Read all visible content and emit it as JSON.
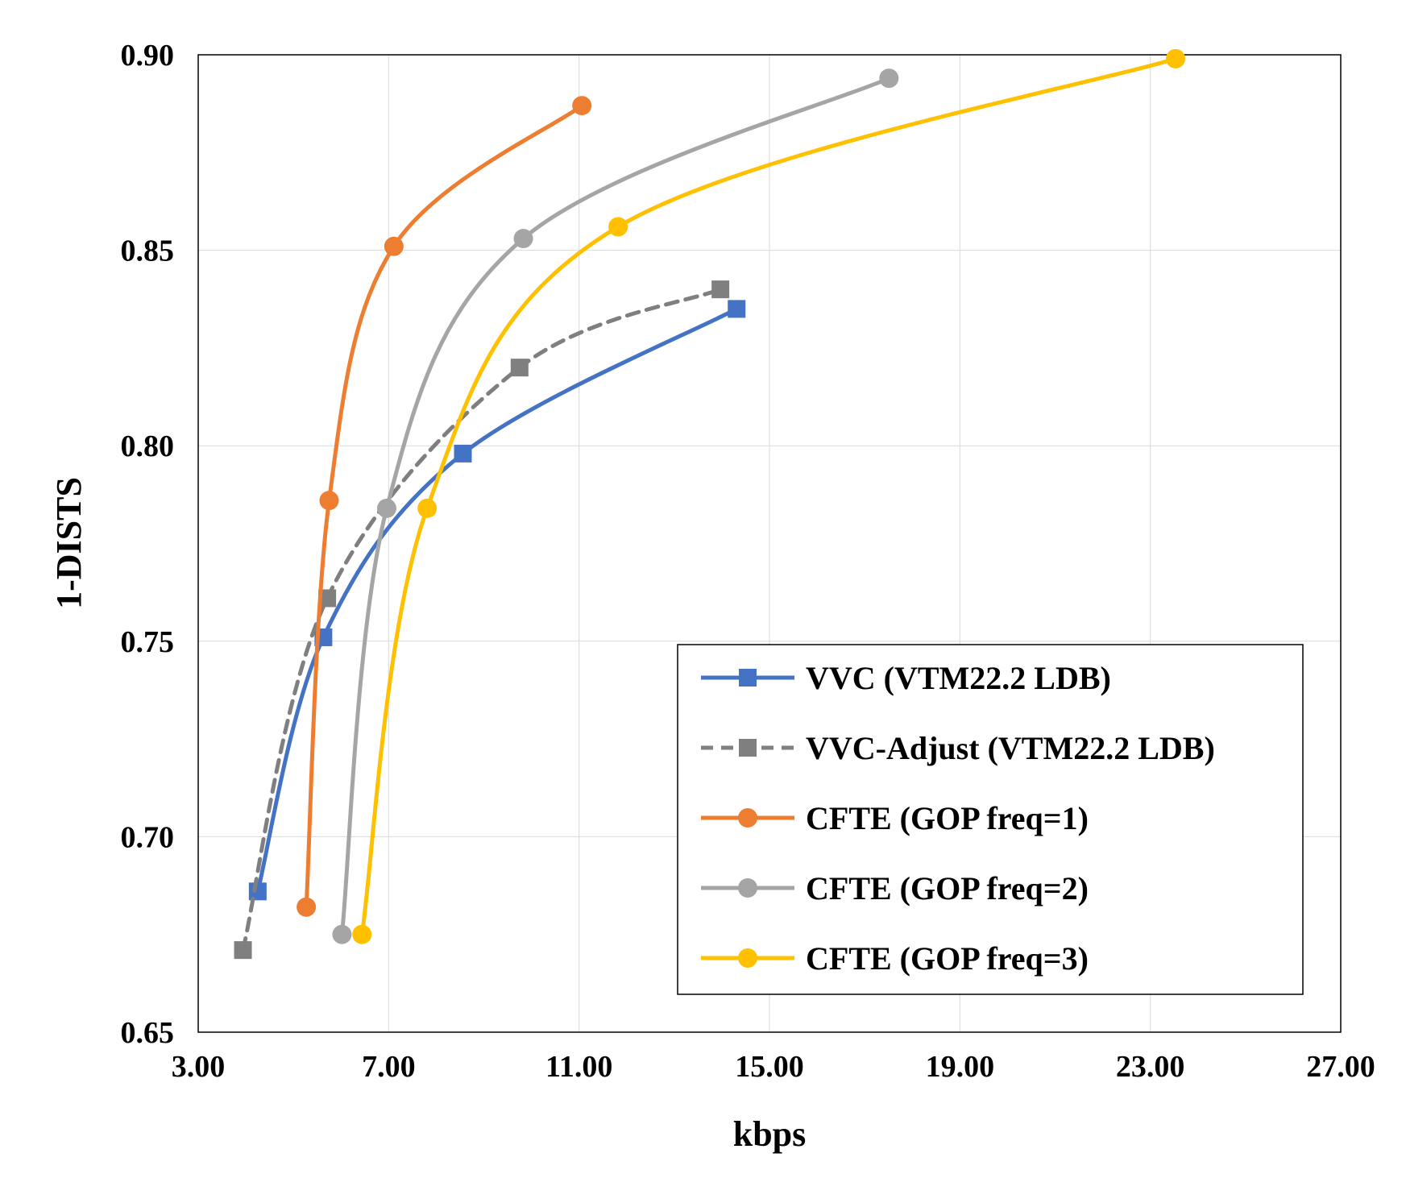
{
  "chart_data": {
    "type": "line",
    "title": "",
    "xlabel": "kbps",
    "ylabel": "1-DISTS",
    "xlim": [
      3.0,
      27.0
    ],
    "ylim": [
      0.65,
      0.9
    ],
    "xticks": [
      "3.00",
      "7.00",
      "11.00",
      "15.00",
      "19.00",
      "23.00",
      "27.00"
    ],
    "yticks": [
      "0.65",
      "0.70",
      "0.75",
      "0.80",
      "0.85",
      "0.90"
    ],
    "grid": true,
    "legend_position": "bottom-right",
    "series": [
      {
        "name": "VVC (VTM22.2 LDB)",
        "color": "#4472C4",
        "dash": false,
        "marker": "square",
        "x": [
          4.25,
          5.63,
          8.56,
          14.31
        ],
        "y": [
          0.686,
          0.751,
          0.798,
          0.835
        ]
      },
      {
        "name": "VVC-Adjust (VTM22.2 LDB)",
        "color": "#7F7F7F",
        "dash": true,
        "marker": "square",
        "x": [
          3.94,
          5.71,
          9.75,
          13.97
        ],
        "y": [
          0.671,
          0.761,
          0.82,
          0.84
        ]
      },
      {
        "name": "CFTE (GOP freq=1)",
        "color": "#ED7D31",
        "dash": false,
        "marker": "circle",
        "x": [
          5.27,
          5.75,
          7.11,
          11.06
        ],
        "y": [
          0.682,
          0.786,
          0.851,
          0.887
        ]
      },
      {
        "name": "CFTE (GOP freq=2)",
        "color": "#A5A5A5",
        "dash": false,
        "marker": "circle",
        "x": [
          6.02,
          6.96,
          9.83,
          17.51
        ],
        "y": [
          0.675,
          0.784,
          0.853,
          0.894
        ]
      },
      {
        "name": "CFTE (GOP freq=3)",
        "color": "#FFC000",
        "dash": false,
        "marker": "circle",
        "x": [
          6.44,
          7.81,
          11.82,
          23.53
        ],
        "y": [
          0.675,
          0.784,
          0.856,
          0.899
        ]
      }
    ]
  }
}
